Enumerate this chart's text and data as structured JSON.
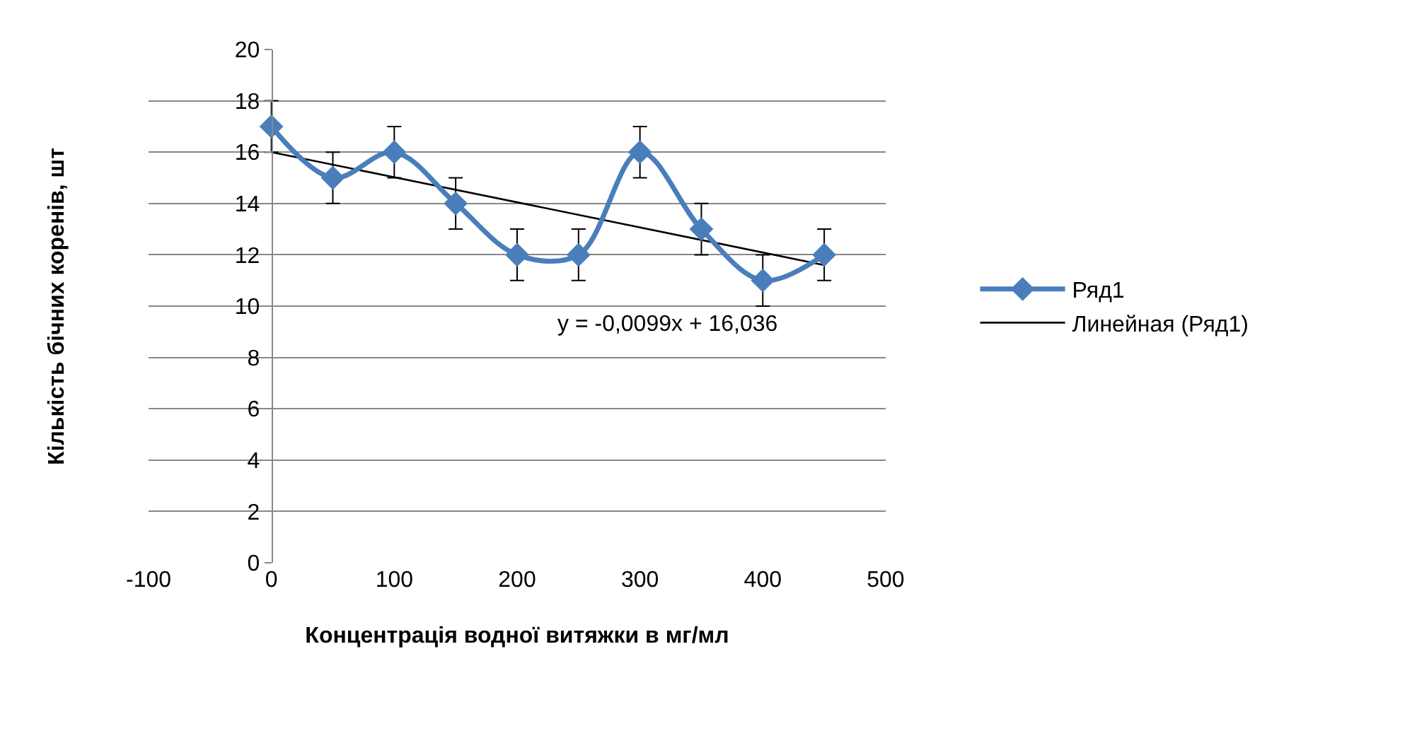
{
  "chart_data": {
    "type": "line",
    "xlabel": "Концентрація водної витяжки в мг/мл",
    "ylabel": "Кількість бічних коренів, шт",
    "xlim": [
      -100,
      500
    ],
    "xticks": [
      -100,
      0,
      100,
      200,
      300,
      400,
      500
    ],
    "ylim": [
      0,
      20
    ],
    "yticks": [
      0,
      2,
      4,
      6,
      8,
      10,
      12,
      14,
      16,
      18,
      20
    ],
    "grid": "y",
    "legend": "right",
    "series": [
      {
        "name": "Ряд1",
        "color": "#4a7ebb",
        "marker": "diamond",
        "line_style": "solid",
        "x": [
          0,
          50,
          100,
          150,
          200,
          250,
          300,
          350,
          400,
          450
        ],
        "values": [
          17,
          15,
          16,
          14,
          12,
          12,
          16,
          13,
          11,
          12
        ],
        "errors": [
          1,
          1,
          1,
          1,
          1,
          1,
          1,
          1,
          1,
          1
        ]
      },
      {
        "name": "Линейная (Ряд1)",
        "color": "#000000",
        "marker": "none",
        "line_style": "solid",
        "x": [
          0,
          450
        ],
        "values": [
          16.0,
          11.6
        ]
      }
    ],
    "annotations": [
      "y = -0,0099x + 16,036"
    ]
  }
}
